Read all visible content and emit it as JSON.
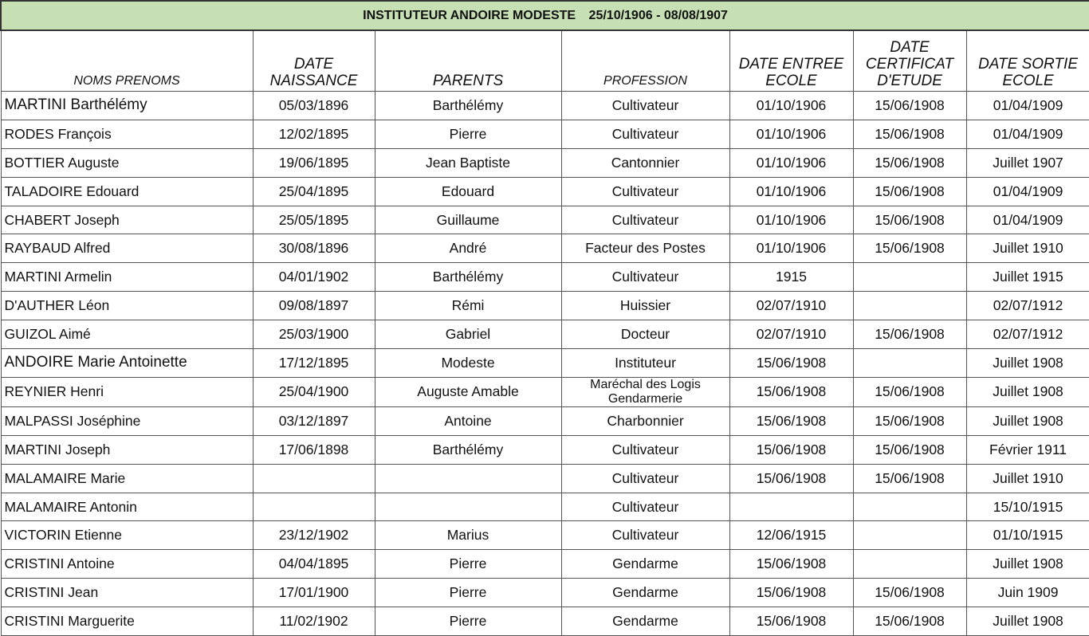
{
  "title": {
    "teacher": "INSTITUTEUR ANDOIRE MODESTE",
    "period": "25/10/1906 -  08/08/1907"
  },
  "columns": [
    "NOMS PRENOMS",
    "DATE NAISSANCE",
    "PARENTS",
    "PROFESSION",
    "DATE ENTREE ECOLE",
    "DATE CERTIFICAT D'ETUDE",
    "DATE SORTIE ECOLE"
  ],
  "rows": [
    [
      "MARTINI Barthélémy",
      "05/03/1896",
      "Barthélémy",
      "Cultivateur",
      "01/10/1906",
      "15/06/1908",
      "01/04/1909"
    ],
    [
      "RODES François",
      "12/02/1895",
      "Pierre",
      "Cultivateur",
      "01/10/1906",
      "15/06/1908",
      "01/04/1909"
    ],
    [
      "BOTTIER Auguste",
      "19/06/1895",
      "Jean Baptiste",
      "Cantonnier",
      "01/10/1906",
      "15/06/1908",
      "Juillet 1907"
    ],
    [
      "TALADOIRE Edouard",
      "25/04/1895",
      "Edouard",
      "Cultivateur",
      "01/10/1906",
      "15/06/1908",
      "01/04/1909"
    ],
    [
      "CHABERT Joseph",
      "25/05/1895",
      "Guillaume",
      "Cultivateur",
      "01/10/1906",
      "15/06/1908",
      "01/04/1909"
    ],
    [
      "RAYBAUD Alfred",
      "30/08/1896",
      "André",
      "Facteur des Postes",
      "01/10/1906",
      "15/06/1908",
      "Juillet 1910"
    ],
    [
      "MARTINI Armelin",
      "04/01/1902",
      "Barthélémy",
      "Cultivateur",
      "1915",
      "",
      "Juillet 1915"
    ],
    [
      "D'AUTHER Léon",
      "09/08/1897",
      "Rémi",
      "Huissier",
      "02/07/1910",
      "",
      "02/07/1912"
    ],
    [
      "GUIZOL Aimé",
      "25/03/1900",
      "Gabriel",
      "Docteur",
      "02/07/1910",
      "15/06/1908",
      "02/07/1912"
    ],
    [
      "ANDOIRE Marie Antoinette",
      "17/12/1895",
      "Modeste",
      "Instituteur",
      "15/06/1908",
      "",
      "Juillet 1908"
    ],
    [
      "REYNIER Henri",
      "25/04/1900",
      "Auguste Amable",
      "Maréchal des Logis Gendarmerie",
      "15/06/1908",
      "15/06/1908",
      "Juillet 1908"
    ],
    [
      "MALPASSI Joséphine",
      "03/12/1897",
      "Antoine",
      "Charbonnier",
      "15/06/1908",
      "15/06/1908",
      "Juillet 1908"
    ],
    [
      "MARTINI Joseph",
      "17/06/1898",
      "Barthélémy",
      "Cultivateur",
      "15/06/1908",
      "15/06/1908",
      "Février 1911"
    ],
    [
      "MALAMAIRE Marie",
      "",
      "",
      "Cultivateur",
      "15/06/1908",
      "15/06/1908",
      "Juillet 1910"
    ],
    [
      "MALAMAIRE Antonin",
      "",
      "",
      "Cultivateur",
      "",
      "",
      "15/10/1915"
    ],
    [
      "VICTORIN Etienne",
      "23/12/1902",
      "Marius",
      "Cultivateur",
      "12/06/1915",
      "",
      "01/10/1915"
    ],
    [
      "CRISTINI Antoine",
      "04/04/1895",
      "Pierre",
      "Gendarme",
      "15/06/1908",
      "",
      "Juillet 1908"
    ],
    [
      "CRISTINI Jean",
      "17/01/1900",
      "Pierre",
      "Gendarme",
      "15/06/1908",
      "15/06/1908",
      "Juin 1909"
    ],
    [
      "CRISTINI Marguerite",
      "11/02/1902",
      "Pierre",
      "Gendarme",
      "15/06/1908",
      "15/06/1908",
      "Juillet 1908"
    ]
  ]
}
